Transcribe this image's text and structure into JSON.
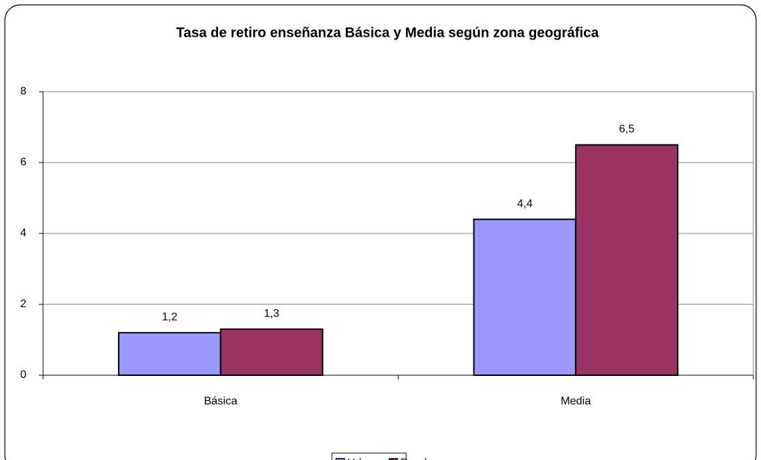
{
  "chart_data": {
    "type": "bar",
    "title": "Tasa de retiro enseñanza Básica y Media según zona geográfica",
    "categories": [
      "Básica",
      "Media"
    ],
    "series": [
      {
        "name": "Urbano",
        "color": "#9999ff",
        "values": [
          1.2,
          4.4
        ],
        "value_labels": [
          "1,2",
          "4,4"
        ]
      },
      {
        "name": "Rural",
        "color": "#993366",
        "values": [
          1.3,
          6.5
        ],
        "value_labels": [
          "1,3",
          "6,5"
        ]
      }
    ],
    "ylim": [
      0,
      8
    ],
    "yticks": [
      0,
      2,
      4,
      6,
      8
    ],
    "grid": true,
    "legend": "bottom"
  }
}
